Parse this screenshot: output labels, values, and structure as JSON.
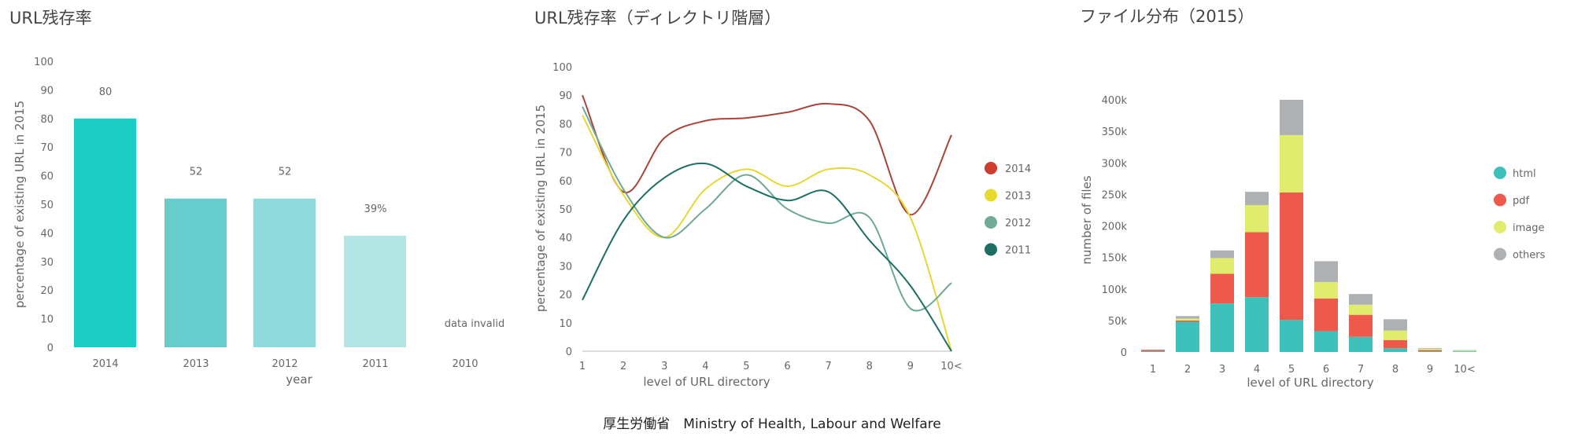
{
  "footer": "厚生労働省　Ministry of Health, Labour and Welfare",
  "chart_data": [
    {
      "type": "bar",
      "title": "URL残存率",
      "xlabel": "year",
      "ylabel": "percentage of existing URL in 2015",
      "ylim": [
        0,
        100
      ],
      "yticks": [
        "0",
        "10",
        "20",
        "30",
        "40",
        "50",
        "60",
        "70",
        "80",
        "90",
        "100"
      ],
      "categories": [
        "2014",
        "2013",
        "2012",
        "2011",
        "2010"
      ],
      "values": [
        80,
        52,
        52,
        39,
        null
      ],
      "data_labels": [
        "80",
        "52",
        "52",
        "39%",
        "data invalid"
      ],
      "colors": [
        "#1ccdc6",
        "#66cccc",
        "#8fd9da",
        "#b3e5e5",
        "#ffffff"
      ]
    },
    {
      "type": "line",
      "title": "URL残存率（ディレクトリ階層）",
      "xlabel": "level of URL directory",
      "ylabel": "percentage of existing URL in 2015",
      "ylim": [
        0,
        100
      ],
      "yticks": [
        "0",
        "10",
        "20",
        "30",
        "40",
        "50",
        "60",
        "70",
        "80",
        "90",
        "100"
      ],
      "categories": [
        "1",
        "2",
        "3",
        "4",
        "5",
        "6",
        "7",
        "8",
        "9",
        "10<"
      ],
      "legend_position": "right",
      "series": [
        {
          "name": "2014",
          "color": "#a9443a",
          "legend_color": "#d03c2e",
          "values": [
            90,
            56,
            75,
            81,
            82,
            84,
            87,
            81,
            48,
            76
          ]
        },
        {
          "name": "2013",
          "color": "#e6d736",
          "legend_color": "#e8da2c",
          "values": [
            83,
            55,
            40,
            57,
            64,
            58,
            64,
            62,
            47,
            0
          ]
        },
        {
          "name": "2012",
          "color": "#6fa894",
          "legend_color": "#6fab95",
          "values": [
            86,
            57,
            40,
            50,
            62,
            50,
            45,
            47,
            15,
            24
          ]
        },
        {
          "name": "2011",
          "color": "#1d6e63",
          "legend_color": "#1d6e63",
          "values": [
            18,
            46,
            61,
            66,
            58,
            53,
            56,
            39,
            23,
            0
          ]
        }
      ]
    },
    {
      "type": "bar",
      "stacked": true,
      "title": "ファイル分布（2015）",
      "xlabel": "level of URL directory",
      "ylabel": "number of files",
      "ylim": [
        0,
        400000
      ],
      "yticks": [
        "0",
        "50k",
        "100k",
        "150k",
        "200k",
        "250k",
        "300k",
        "350k",
        "400k"
      ],
      "categories": [
        "1",
        "2",
        "3",
        "4",
        "5",
        "6",
        "7",
        "8",
        "9",
        "10<"
      ],
      "legend_position": "right",
      "series": [
        {
          "name": "html",
          "color": "#3fc1bb",
          "values": [
            1000,
            48000,
            77000,
            87000,
            51000,
            33000,
            24000,
            6000,
            1000,
            1000
          ]
        },
        {
          "name": "pdf",
          "color": "#ed5a4c",
          "values": [
            2000,
            2000,
            47000,
            103000,
            202000,
            52000,
            35000,
            13000,
            2000,
            0
          ]
        },
        {
          "name": "image",
          "color": "#dfec6e",
          "values": [
            0,
            3000,
            25000,
            43000,
            91000,
            26000,
            16000,
            15000,
            2000,
            1000
          ]
        },
        {
          "name": "others",
          "color": "#aeb1b3",
          "values": [
            1000,
            4000,
            12000,
            21000,
            56000,
            33000,
            17000,
            18000,
            1000,
            1000
          ]
        }
      ]
    }
  ]
}
